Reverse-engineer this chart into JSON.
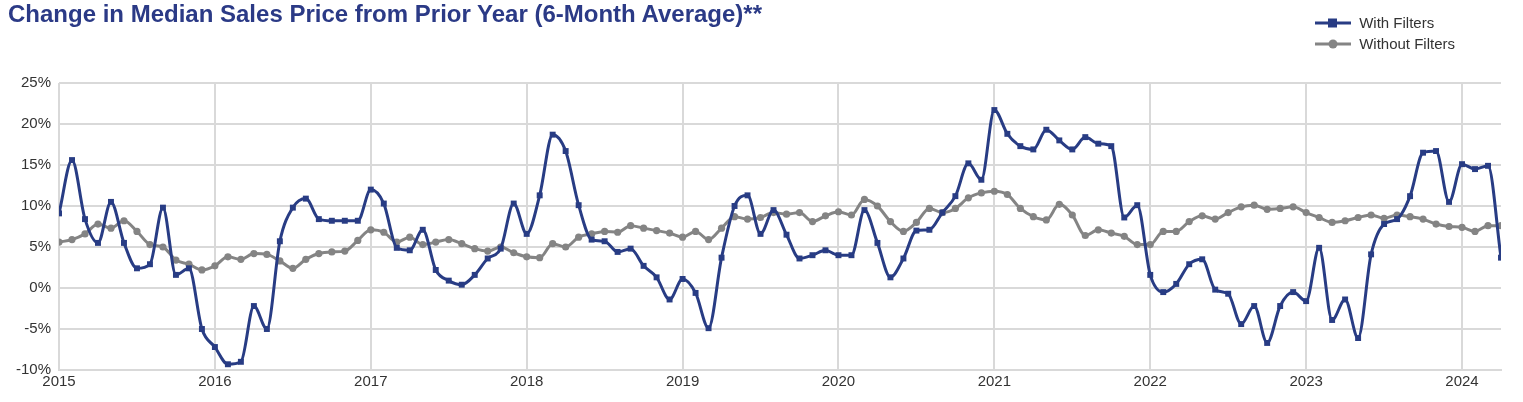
{
  "chart_data": {
    "type": "line",
    "title": "Change in Median Sales Price from Prior Year (6-Month Average)**",
    "x": [
      "2015-01",
      "2015-02",
      "2015-03",
      "2015-04",
      "2015-05",
      "2015-06",
      "2015-07",
      "2015-08",
      "2015-09",
      "2015-10",
      "2015-11",
      "2015-12",
      "2016-01",
      "2016-02",
      "2016-03",
      "2016-04",
      "2016-05",
      "2016-06",
      "2016-07",
      "2016-08",
      "2016-09",
      "2016-10",
      "2016-11",
      "2016-12",
      "2017-01",
      "2017-02",
      "2017-03",
      "2017-04",
      "2017-05",
      "2017-06",
      "2017-07",
      "2017-08",
      "2017-09",
      "2017-10",
      "2017-11",
      "2017-12",
      "2018-01",
      "2018-02",
      "2018-03",
      "2018-04",
      "2018-05",
      "2018-06",
      "2018-07",
      "2018-08",
      "2018-09",
      "2018-10",
      "2018-11",
      "2018-12",
      "2019-01",
      "2019-02",
      "2019-03",
      "2019-04",
      "2019-05",
      "2019-06",
      "2019-07",
      "2019-08",
      "2019-09",
      "2019-10",
      "2019-11",
      "2019-12",
      "2020-01",
      "2020-02",
      "2020-03",
      "2020-04",
      "2020-05",
      "2020-06",
      "2020-07",
      "2020-08",
      "2020-09",
      "2020-10",
      "2020-11",
      "2020-12",
      "2021-01",
      "2021-02",
      "2021-03",
      "2021-04",
      "2021-05",
      "2021-06",
      "2021-07",
      "2021-08",
      "2021-09",
      "2021-10",
      "2021-11",
      "2021-12",
      "2022-01",
      "2022-02",
      "2022-03",
      "2022-04",
      "2022-05",
      "2022-06",
      "2022-07",
      "2022-08",
      "2022-09",
      "2022-10",
      "2022-11",
      "2022-12",
      "2023-01",
      "2023-02",
      "2023-03",
      "2023-04",
      "2023-05",
      "2023-06",
      "2023-07",
      "2023-08",
      "2023-09",
      "2023-10",
      "2023-11",
      "2023-12",
      "2024-01",
      "2024-02",
      "2024-03",
      "2024-04"
    ],
    "series": [
      {
        "name": "With Filters",
        "color": "#283c84",
        "marker": "square",
        "values": [
          9.1,
          15.6,
          8.4,
          5.5,
          10.5,
          5.5,
          2.4,
          2.9,
          9.8,
          1.6,
          2.4,
          -5.0,
          -7.2,
          -9.3,
          -9.0,
          -2.2,
          -5.0,
          5.7,
          9.8,
          10.9,
          8.4,
          8.2,
          8.2,
          8.2,
          12.0,
          10.3,
          4.9,
          4.6,
          7.1,
          2.2,
          0.9,
          0.4,
          1.6,
          3.6,
          4.8,
          10.3,
          6.6,
          11.3,
          18.7,
          16.7,
          10.1,
          5.9,
          5.7,
          4.4,
          4.8,
          2.7,
          1.3,
          -1.4,
          1.1,
          -0.6,
          -4.9,
          3.7,
          10.0,
          11.3,
          6.6,
          9.5,
          6.5,
          3.6,
          4.0,
          4.6,
          4.0,
          4.0,
          9.5,
          5.5,
          1.3,
          3.6,
          7.0,
          7.1,
          9.2,
          11.2,
          15.2,
          13.2,
          21.7,
          18.8,
          17.3,
          16.9,
          19.3,
          18.0,
          16.9,
          18.4,
          17.6,
          17.3,
          8.6,
          10.1,
          1.6,
          -0.5,
          0.5,
          2.9,
          3.5,
          -0.2,
          -0.7,
          -4.4,
          -2.2,
          -6.7,
          -2.2,
          -0.5,
          -1.6,
          4.9,
          -3.9,
          -1.4,
          -6.1,
          4.1,
          7.8,
          8.4,
          11.2,
          16.5,
          16.7,
          10.5,
          15.1,
          14.5,
          14.9,
          3.7
        ]
      },
      {
        "name": "Without Filters",
        "color": "#848484",
        "marker": "circle",
        "values": [
          5.6,
          5.9,
          6.6,
          7.8,
          7.3,
          8.2,
          6.9,
          5.3,
          5.0,
          3.4,
          2.9,
          2.2,
          2.7,
          3.8,
          3.5,
          4.2,
          4.1,
          3.3,
          2.4,
          3.5,
          4.2,
          4.4,
          4.5,
          5.8,
          7.1,
          6.8,
          5.6,
          6.2,
          5.3,
          5.6,
          5.9,
          5.4,
          4.8,
          4.5,
          5.0,
          4.3,
          3.8,
          3.7,
          5.4,
          5.0,
          6.2,
          6.6,
          6.9,
          6.8,
          7.6,
          7.3,
          7.0,
          6.7,
          6.2,
          6.9,
          5.9,
          7.3,
          8.7,
          8.4,
          8.6,
          9.2,
          9.0,
          9.2,
          8.1,
          8.8,
          9.3,
          8.9,
          10.8,
          10.0,
          8.1,
          6.9,
          8.0,
          9.7,
          9.2,
          9.7,
          11.0,
          11.6,
          11.8,
          11.4,
          9.7,
          8.7,
          8.3,
          10.2,
          8.9,
          6.4,
          7.1,
          6.7,
          6.3,
          5.3,
          5.3,
          6.9,
          6.9,
          8.1,
          8.8,
          8.4,
          9.2,
          9.9,
          10.1,
          9.6,
          9.7,
          9.9,
          9.2,
          8.6,
          8.0,
          8.2,
          8.6,
          8.9,
          8.5,
          8.9,
          8.7,
          8.4,
          7.8,
          7.5,
          7.4,
          6.9,
          7.6,
          7.6
        ]
      }
    ],
    "xlim": [
      "2015-01",
      "2024-04"
    ],
    "xticks": [
      "2015",
      "2016",
      "2017",
      "2018",
      "2019",
      "2020",
      "2021",
      "2022",
      "2023",
      "2024"
    ],
    "ylim": [
      -10,
      25
    ],
    "yticks": [
      {
        "value": -10,
        "label": "-10%"
      },
      {
        "value": -5,
        "label": "-5%"
      },
      {
        "value": 0,
        "label": "0%"
      },
      {
        "value": 5,
        "label": "5%"
      },
      {
        "value": 10,
        "label": "10%"
      },
      {
        "value": 15,
        "label": "15%"
      },
      {
        "value": 20,
        "label": "20%"
      },
      {
        "value": 25,
        "label": "25%"
      }
    ],
    "grid": true,
    "legend": "top right",
    "line_style": "solid"
  }
}
